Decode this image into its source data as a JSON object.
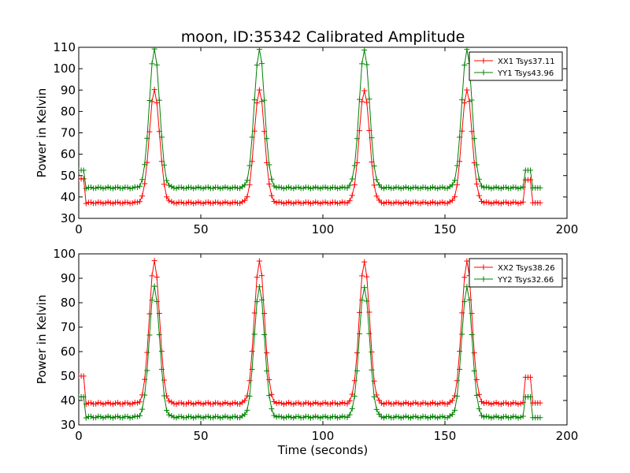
{
  "figure": {
    "title": "moon, ID:35342 Calibrated Amplitude"
  },
  "chart_data": [
    {
      "type": "line",
      "title": "moon, ID:35342 Calibrated Amplitude",
      "xlabel": "",
      "ylabel": "Power in Kelvin",
      "xlim": [
        0,
        200
      ],
      "ylim": [
        30,
        110
      ],
      "xticks": [
        0,
        50,
        100,
        150,
        200
      ],
      "yticks": [
        30,
        40,
        50,
        60,
        70,
        80,
        90,
        100,
        110
      ],
      "grid": false,
      "legend_position": "top-right",
      "peaks_x": [
        31,
        74,
        117,
        159
      ],
      "series": [
        {
          "name": "XX1 Tsys37.11",
          "color": "#ff0000",
          "marker": "+",
          "baseline": 37.3,
          "peak": 90,
          "start_level": 48.5,
          "end_level": 48,
          "tail_level": 37.3
        },
        {
          "name": "YY1 Tsys43.96",
          "color": "#008000",
          "marker": "+",
          "baseline": 44.3,
          "peak": 109,
          "start_level": 52.5,
          "end_level": 52.5,
          "tail_level": 44.3
        }
      ]
    },
    {
      "type": "line",
      "title": "",
      "xlabel": "Time (seconds)",
      "ylabel": "Power in Kelvin",
      "xlim": [
        0,
        200
      ],
      "ylim": [
        30,
        100
      ],
      "xticks": [
        0,
        50,
        100,
        150,
        200
      ],
      "yticks": [
        30,
        40,
        50,
        60,
        70,
        80,
        90,
        100
      ],
      "grid": false,
      "legend_position": "top-right",
      "peaks_x": [
        31,
        74,
        117,
        159
      ],
      "series": [
        {
          "name": "XX2 Tsys38.26",
          "color": "#ff0000",
          "marker": "+",
          "baseline": 38.8,
          "peak": 97,
          "start_level": 50,
          "end_level": 49.5,
          "tail_level": 39
        },
        {
          "name": "YY2 Tsys32.66",
          "color": "#008000",
          "marker": "+",
          "baseline": 33.2,
          "peak": 86.5,
          "start_level": 41.5,
          "end_level": 41.5,
          "tail_level": 33
        }
      ]
    }
  ]
}
